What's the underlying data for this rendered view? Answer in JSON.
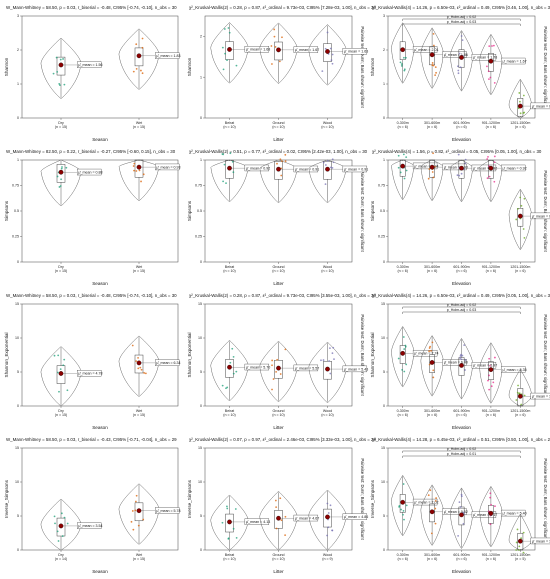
{
  "chart_data": [
    {
      "type": "violin",
      "row": 0,
      "col": 0,
      "stat": "W_Mann-Whitney = 58.50, p = 0.03, r_biserial = -0.48, CI95% [-0.74, -0.10], n_obs = 30",
      "xlabel": "Season",
      "ylabel": "Shannon",
      "ylim": [
        0,
        3
      ],
      "yticks": [
        0,
        1,
        2,
        3
      ],
      "categories": [
        "Dry",
        "Wet"
      ],
      "ns": [
        "(n = 15)",
        "(n = 15)"
      ],
      "means": [
        1.56,
        1.83
      ],
      "mean_labels": [
        "μ̂_mean = 1.56",
        "μ̂_mean = 1.83"
      ],
      "side": ""
    },
    {
      "type": "violin",
      "row": 0,
      "col": 1,
      "stat": "χ²_Kruskal-Wallis(2) = 0.28, p = 0.87, ε²_ordinal = 9.73e-03, CI95% [7.28e-03, 1.00], n_obs = 30",
      "xlabel": "Litter",
      "ylabel": "Shannon",
      "ylim": [
        0,
        2.5
      ],
      "yticks": [
        0,
        1,
        2
      ],
      "categories": [
        "Beirat",
        "Ground",
        "Wood"
      ],
      "ns": [
        "(n = 10)",
        "(n = 10)",
        "(n = 10)"
      ],
      "means": [
        1.68,
        1.67,
        1.63
      ],
      "mean_labels": [
        "μ̂_mean = 1.68",
        "μ̂_mean = 1.67",
        "μ̂_mean = 1.63"
      ],
      "side": "Pairwise test: Dunn; Bars shown: significant"
    },
    {
      "type": "violin",
      "row": 0,
      "col": 2,
      "stat": "χ²_Kruskal-Wallis(4) = 14.26, p = 6.50e-03, ε²_ordinal = 0.49, CI95% [0.46, 1.00], n_obs = 30",
      "xlabel": "Elevation",
      "ylabel": "Shannon",
      "ylim": [
        0,
        3
      ],
      "yticks": [
        0,
        1,
        2,
        3
      ],
      "categories": [
        "0-300m",
        "301-600m",
        "601-900m",
        "901-1200m",
        "1201-1500m"
      ],
      "ns": [
        "(n = 6)",
        "(n = 6)",
        "(n = 6)",
        "(n = 6)",
        "(n = 6)"
      ],
      "means": [
        2.01,
        1.86,
        1.78,
        1.67,
        0.35
      ],
      "mean_labels": [
        "μ̂_mean = 2.01",
        "μ̂_mean = 1.86",
        "μ̂_mean = 1.78",
        "μ̂_mean = 1.67",
        "μ̂_mean = 0.35"
      ],
      "brackets": [
        "p_Holm-adj = 0.02",
        "p_Holm-adj = 0.03"
      ],
      "side": "Pairwise test: Dunn; Bars shown: significant"
    },
    {
      "type": "violin",
      "row": 1,
      "col": 0,
      "stat": "W_Mann-Whitney = 82.50, p = 0.22, r_biserial = -0.27, CI95% [-0.60, 0.15], n_obs = 30",
      "xlabel": "Season",
      "ylabel": "Simpsons",
      "ylim": [
        0,
        1
      ],
      "yticks": [
        0,
        0.25,
        0.5,
        0.75,
        1
      ],
      "categories": [
        "Dry",
        "Wet"
      ],
      "ns": [
        "(n = 15)",
        "(n = 15)"
      ],
      "means": [
        0.88,
        0.93
      ],
      "mean_labels": [
        "μ̂_mean = 0.88",
        "μ̂_mean = 0.93"
      ],
      "side": ""
    },
    {
      "type": "violin",
      "row": 1,
      "col": 1,
      "stat": "χ²_Kruskal-Wallis(2) = 0.51, p = 0.77, ε²_ordinal = 0.02, CI95% [2.42e-03, 1.00], n_obs = 30",
      "xlabel": "Litter",
      "ylabel": "Simpsons",
      "ylim": [
        0,
        1
      ],
      "yticks": [
        0,
        0.25,
        0.5,
        0.75,
        1
      ],
      "categories": [
        "Beirat",
        "Ground",
        "Wood"
      ],
      "ns": [
        "(n = 10)",
        "(n = 10)",
        "(n = 10)"
      ],
      "means": [
        0.92,
        0.91,
        0.91
      ],
      "mean_labels": [
        "μ̂_mean = 0.92",
        "μ̂_mean = 0.91",
        "μ̂_mean = 0.91"
      ],
      "side": "Pairwise test: Dunn; Bars shown: significant"
    },
    {
      "type": "violin",
      "row": 1,
      "col": 2,
      "stat": "χ²_Kruskal-Wallis(4) = 1.56, p = 0.82, ε²_ordinal = 0.05, CI95% [0.05, 1.00], n_obs = 30",
      "xlabel": "Elevation",
      "ylabel": "Simpsons",
      "ylim": [
        0,
        1
      ],
      "yticks": [
        0,
        0.25,
        0.5,
        0.75,
        1
      ],
      "categories": [
        "0-300m",
        "301-600m",
        "601-900m",
        "901-1200m",
        "1201-1500m"
      ],
      "ns": [
        "(n = 6)",
        "(n = 6)",
        "(n = 6)",
        "(n = 6)",
        "(n = 6)"
      ],
      "means": [
        0.94,
        0.93,
        0.92,
        0.92,
        0.45
      ],
      "mean_labels": [
        "μ̂_mean = 0.94",
        "μ̂_mean = 0.93",
        "μ̂_mean = 0.92",
        "μ̂_mean = 0.92",
        "μ̂_mean = 0.45"
      ],
      "brackets": [],
      "side": "Pairwise test: Dunn; Bars shown: significant"
    },
    {
      "type": "violin",
      "row": 2,
      "col": 0,
      "stat": "W_Mann-Whitney = 58.50, p = 0.03, r_biserial = -0.48, CI95% [-0.74, -0.10], n_obs = 30",
      "xlabel": "Season",
      "ylabel": "Shannon_Exponential",
      "ylim": [
        0,
        15
      ],
      "yticks": [
        0,
        5,
        10,
        15
      ],
      "categories": [
        "Dry",
        "Wet"
      ],
      "ns": [
        "(n = 15)",
        "(n = 15)"
      ],
      "means": [
        4.78,
        6.34
      ],
      "mean_labels": [
        "μ̂_mean = 4.78",
        "μ̂_mean = 6.34"
      ],
      "side": ""
    },
    {
      "type": "violin",
      "row": 2,
      "col": 1,
      "stat": "χ²_Kruskal-Wallis(2) = 0.28, p = 0.87, ε²_ordinal = 9.73e-03, CI95% [3.55e-03, 1.00], n_obs = 30",
      "xlabel": "Litter",
      "ylabel": "Shannon_Exponential",
      "ylim": [
        0,
        15
      ],
      "yticks": [
        0,
        5,
        10,
        15
      ],
      "categories": [
        "Beirat",
        "Ground",
        "Wood"
      ],
      "ns": [
        "(n = 10)",
        "(n = 10)",
        "(n = 10)"
      ],
      "means": [
        5.7,
        5.57,
        5.43
      ],
      "mean_labels": [
        "μ̂_mean = 5.70",
        "μ̂_mean = 5.57",
        "μ̂_mean = 5.43"
      ],
      "side": "Pairwise test: Dunn; Bars shown: significant"
    },
    {
      "type": "violin",
      "row": 2,
      "col": 2,
      "stat": "χ²_Kruskal-Wallis(4) = 14.26, p = 6.50e-03, ε²_ordinal = 0.49, CI95% [0.05, 1.00], n_obs = 30",
      "xlabel": "Elevation",
      "ylabel": "Shannon_Exponential",
      "ylim": [
        0,
        15
      ],
      "yticks": [
        0,
        5,
        10,
        15
      ],
      "categories": [
        "0-300m",
        "301-600m",
        "601-900m",
        "901-1200m",
        "1201-1500m"
      ],
      "ns": [
        "(n = 6)",
        "(n = 6)",
        "(n = 6)",
        "(n = 6)",
        "(n = 6)"
      ],
      "means": [
        7.74,
        6.4,
        5.97,
        5.35,
        1.43
      ],
      "mean_labels": [
        "μ̂_mean = 7.74",
        "μ̂_mean = 6.40",
        "μ̂_mean = 5.97",
        "μ̂_mean = 5.35",
        "μ̂_mean = 1.43"
      ],
      "brackets": [
        "p_Holm-adj = 0.02",
        "p_Holm-adj = 0.03"
      ],
      "side": "Pairwise test: Dunn; Bars shown: significant"
    },
    {
      "type": "violin",
      "row": 3,
      "col": 0,
      "stat": "W_Mann-Whitney = 58.50, p = 0.03, r_biserial = -0.43, CI95% [-0.71, -0.04], n_obs = 29",
      "xlabel": "Season",
      "ylabel": "Inverse_Simpsons",
      "ylim": [
        0,
        15
      ],
      "yticks": [
        0,
        5,
        10,
        15
      ],
      "categories": [
        "Dry",
        "Wet"
      ],
      "ns": [
        "(n = 14)",
        "(n = 15)"
      ],
      "means": [
        3.54,
        5.78
      ],
      "mean_labels": [
        "μ̂_mean = 3.54",
        "μ̂_mean = 5.78"
      ],
      "side": ""
    },
    {
      "type": "violin",
      "row": 3,
      "col": 1,
      "stat": "χ²_Kruskal-Wallis(2) = 0.07, p = 0.97, ε²_ordinal = 2.46e-03, CI95% [3.33e-03, 1.00], n_obs = 29",
      "xlabel": "Litter",
      "ylabel": "Inverse_Simpsons",
      "ylim": [
        0,
        15
      ],
      "yticks": [
        0,
        5,
        10,
        15
      ],
      "categories": [
        "Beirat",
        "Ground",
        "Wood"
      ],
      "ns": [
        "(n = 10)",
        "(n = 10)",
        "(n = 9)"
      ],
      "means": [
        4.13,
        4.67,
        4.86
      ],
      "mean_labels": [
        "μ̂_mean = 4.13",
        "μ̂_mean = 4.67",
        "μ̂_mean = 4.86"
      ],
      "side": "Pairwise test: Dunn; Bars shown: significant"
    },
    {
      "type": "violin",
      "row": 3,
      "col": 2,
      "stat": "χ²_Kruskal-Wallis(4) = 14.28, p = 6.45e-03, ε²_ordinal = 0.51, CI95% [0.50, 1.00], n_obs = 29",
      "xlabel": "Elevation",
      "ylabel": "Inverse_Simpsons",
      "ylim": [
        0,
        15
      ],
      "yticks": [
        0,
        5,
        10,
        15
      ],
      "categories": [
        "0-300m",
        "301-600m",
        "601-900m",
        "901-1200m",
        "1201-1500m"
      ],
      "ns": [
        "(n = 6)",
        "(n = 6)",
        "(n = 6)",
        "(n = 6)",
        "(n = 5)"
      ],
      "means": [
        7.02,
        5.62,
        5.17,
        5.4,
        1.3
      ],
      "mean_labels": [
        "μ̂_mean = 7.02",
        "μ̂_mean = 5.62",
        "μ̂_mean = 5.17",
        "μ̂_mean = 5.40",
        "μ̂_mean = 1.30"
      ],
      "brackets": [
        "p_Holm-adj = 0.02",
        "p_Holm-adj = 0.01"
      ],
      "side": "Pairwise test: Dunn; Bars shown: significant"
    }
  ],
  "colors": {
    "mean_point": "#8b0000",
    "violin": "#555555",
    "box": "#333333",
    "dot_palette": [
      "#1b9e77",
      "#d95f02",
      "#7570b3",
      "#e7298a",
      "#66a61e"
    ]
  }
}
